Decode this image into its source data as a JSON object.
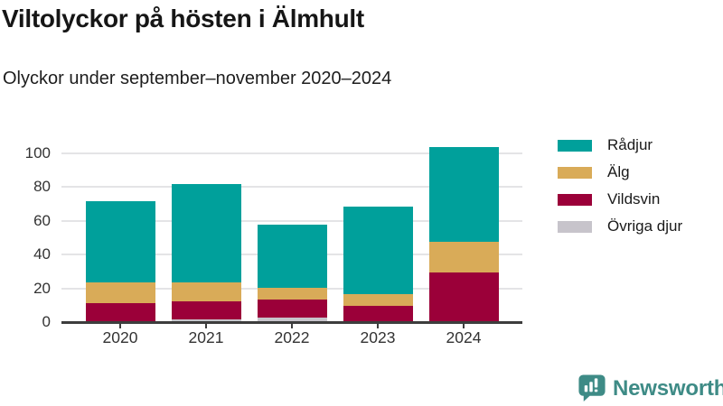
{
  "title": "Viltolyckor på hösten i Älmhult",
  "subtitle": "Olyckor under september–november 2020–2024",
  "chart_data": {
    "type": "bar",
    "stacked": true,
    "title": "Viltolyckor på hösten i Älmhult",
    "subtitle": "Olyckor under september–november 2020–2024",
    "categories": [
      "2020",
      "2021",
      "2022",
      "2023",
      "2024"
    ],
    "series": [
      {
        "name": "Övriga djur",
        "color": "#c7c4cb",
        "values": [
          0,
          2,
          3,
          0,
          0
        ]
      },
      {
        "name": "Vildsvin",
        "color": "#9b0039",
        "values": [
          12,
          11,
          11,
          10,
          30
        ]
      },
      {
        "name": "Älg",
        "color": "#d9ab58",
        "values": [
          12,
          11,
          7,
          7,
          18
        ]
      },
      {
        "name": "Rådjur",
        "color": "#00a09b",
        "values": [
          48,
          58,
          37,
          52,
          56
        ]
      }
    ],
    "totals": [
      72,
      82,
      58,
      69,
      104
    ],
    "yticks": [
      0,
      20,
      40,
      60,
      80,
      100
    ],
    "ylim": [
      0,
      110
    ],
    "xlabel": "",
    "ylabel": "",
    "grid": true,
    "legend_position": "top-right",
    "legend_order": [
      "Rådjur",
      "Älg",
      "Vildsvin",
      "Övriga djur"
    ]
  },
  "colors": {
    "gridline": "#e4e4e6",
    "axis": "#3d3d3d",
    "brand_teal": "#3e8b86"
  },
  "footer": {
    "brand": "Newsworthy"
  }
}
